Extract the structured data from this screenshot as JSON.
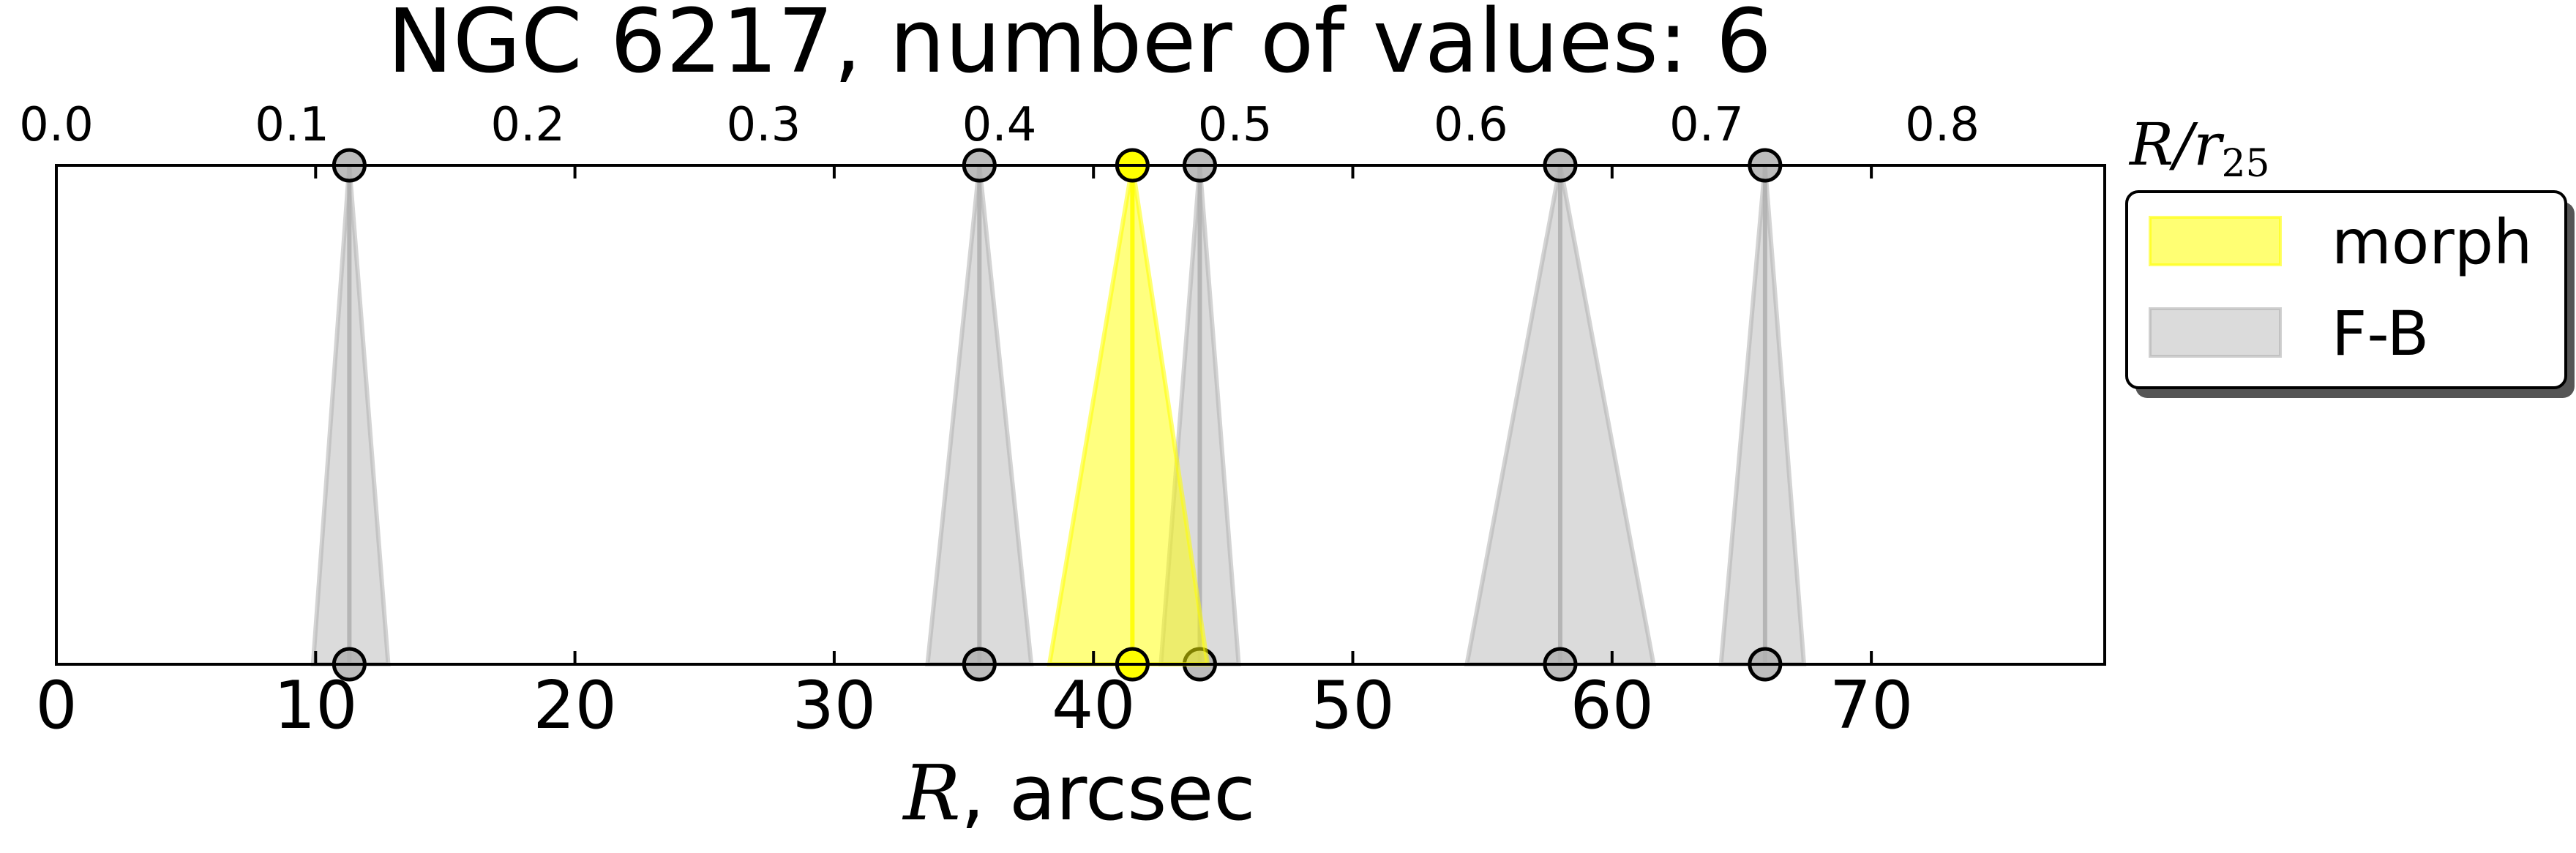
{
  "chart_data": {
    "type": "scatter",
    "title": "NGC 6217, number of values: 6",
    "xlabel_italic": "R",
    "xlabel_rest": ", arcsec",
    "x2label_main": "R/r",
    "x2label_sub": "25",
    "xlim": [
      0,
      79
    ],
    "xticks": [
      "0",
      "10",
      "20",
      "30",
      "40",
      "50",
      "60",
      "70"
    ],
    "x2lim": [
      0,
      0.8689
    ],
    "x2ticks": [
      "0.0",
      "0.1",
      "0.2",
      "0.3",
      "0.4",
      "0.5",
      "0.6",
      "0.7",
      "0.8"
    ],
    "grid": false,
    "legend_position": "outside-right",
    "series": [
      {
        "name": "morph",
        "color": "#ffff00",
        "points": [
          {
            "x": 41.5,
            "xmin": 38.3,
            "xmax": 44.4
          }
        ]
      },
      {
        "name": "F-B",
        "color": "#b0b0b0",
        "points": [
          {
            "x": 11.3,
            "xmin": 9.9,
            "xmax": 12.8
          },
          {
            "x": 35.6,
            "xmin": 33.6,
            "xmax": 37.6
          },
          {
            "x": 44.1,
            "xmin": 42.6,
            "xmax": 45.6
          },
          {
            "x": 58.0,
            "xmin": 54.4,
            "xmax": 61.6
          },
          {
            "x": 65.9,
            "xmin": 64.2,
            "xmax": 67.4
          }
        ]
      }
    ]
  }
}
